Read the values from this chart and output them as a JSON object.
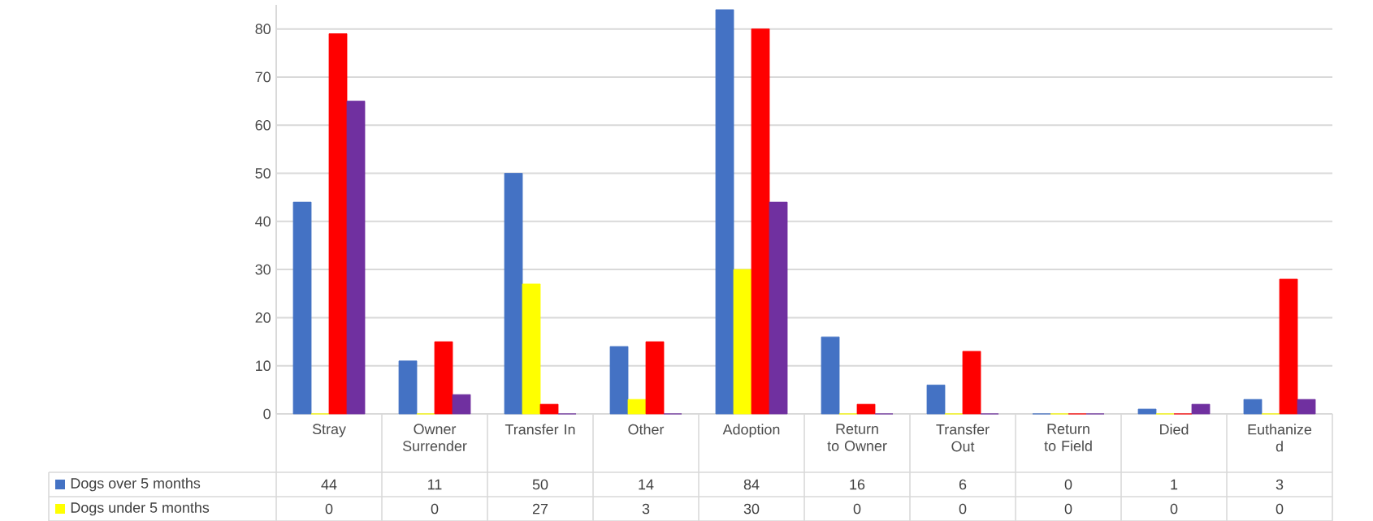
{
  "chart_data": {
    "type": "bar",
    "categories": [
      "Stray",
      "Owner Surrender",
      "Transfer In",
      "Other",
      "Adoption",
      "Return to Owner",
      "Transfer Out",
      "Return to Field",
      "Died",
      "Euthanize d"
    ],
    "series": [
      {
        "name": "Dogs over 5 months",
        "color": "#4472c4",
        "values": [
          44,
          11,
          50,
          14,
          84,
          16,
          6,
          0,
          1,
          3
        ],
        "value_labels": [
          "44",
          "11",
          "50",
          "14",
          "84",
          "16",
          "6",
          "0",
          "1",
          "3"
        ]
      },
      {
        "name": "Dogs under 5 months",
        "color": "#ffff00",
        "values": [
          0,
          0,
          27,
          3,
          30,
          0,
          0,
          0,
          0,
          0
        ],
        "value_labels": [
          "0",
          "0",
          "27",
          "3",
          "30",
          "0",
          "0",
          "0",
          "0",
          "0"
        ]
      },
      {
        "color": "#ff0000",
        "values": [
          79,
          15,
          2,
          15,
          80,
          2,
          13,
          0,
          0,
          28
        ]
      },
      {
        "color": "#7030a0",
        "values": [
          65,
          4,
          0,
          0,
          44,
          0,
          0,
          0,
          2,
          3
        ]
      }
    ],
    "ylim": [
      0,
      85
    ],
    "yticks": [
      0,
      10,
      20,
      30,
      40,
      50,
      60,
      70,
      80
    ],
    "grid": "y",
    "legend": "bottom"
  }
}
